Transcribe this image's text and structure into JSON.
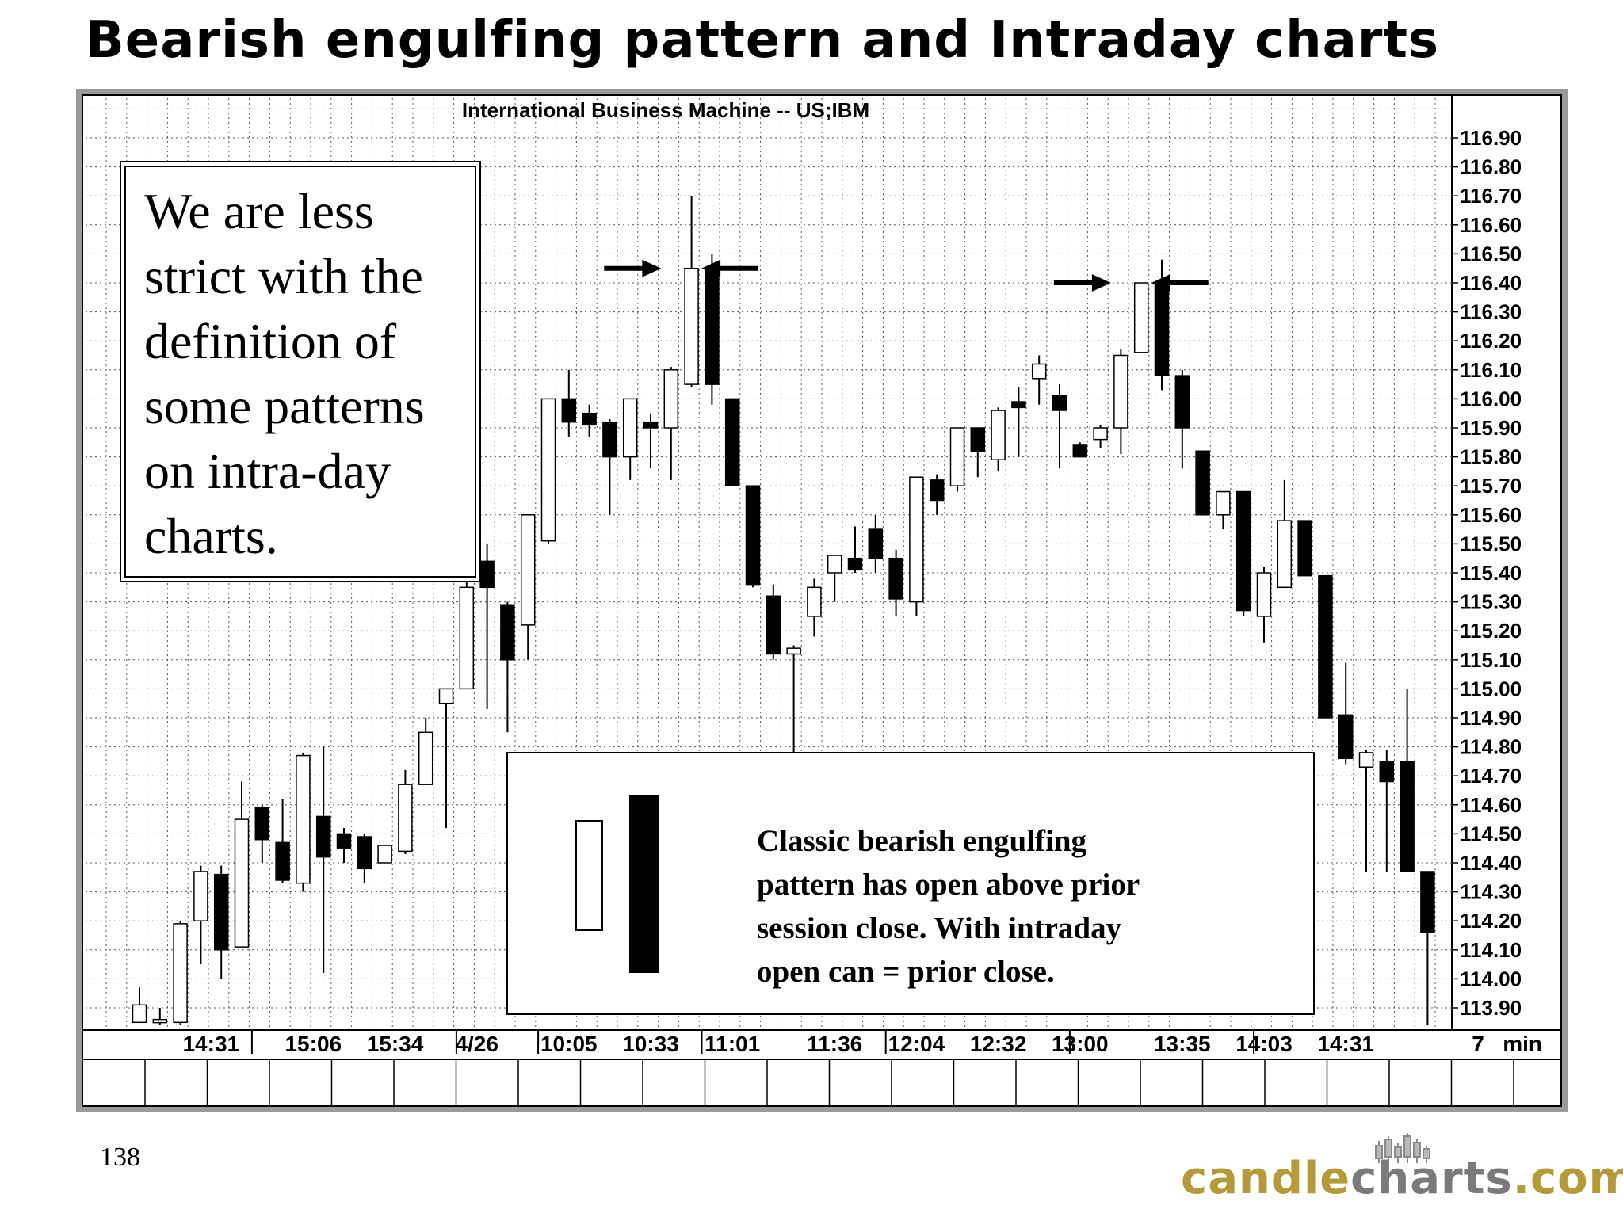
{
  "slide": {
    "title": "Bearish engulfing pattern and Intraday charts",
    "page_number": "138",
    "logo": {
      "part1": "candle",
      "part2": "charts",
      "part3": ".com"
    }
  },
  "callouts": {
    "left_note": [
      "We are less",
      "strict with the",
      "definition of",
      "some patterns",
      "on intra-day",
      "charts."
    ],
    "bottom_note": [
      "Classic bearish engulfing",
      "pattern has open above prior",
      "session close. With intraday",
      "open can = prior close."
    ]
  },
  "colors": {
    "frame": "#9a9a9a",
    "grid": "#555555",
    "candle": "#000000",
    "up_fill": "#ffffff",
    "logo_gold": "#b59a3a",
    "logo_gray": "#7a7a7a"
  },
  "chart_data": {
    "type": "candlestick",
    "title": "International  Business  Machine  --  US;IBM",
    "interval_label": "7   min",
    "ylim": [
      113.84,
      116.98
    ],
    "yticks": [
      "116.90",
      "116.80",
      "116.70",
      "116.60",
      "116.50",
      "116.40",
      "116.30",
      "116.20",
      "116.10",
      "116.00",
      "115.90",
      "115.80",
      "115.70",
      "115.60",
      "115.50",
      "115.40",
      "115.30",
      "115.20",
      "115.10",
      "115.00",
      "114.90",
      "114.80",
      "114.70",
      "114.60",
      "114.50",
      "114.40",
      "114.30",
      "114.20",
      "114.10",
      "114.00",
      "113.90"
    ],
    "xtick_labels": [
      {
        "label": "14:31",
        "at": 3.5
      },
      {
        "label": "15:06",
        "at": 8.5
      },
      {
        "label": "15:34",
        "at": 12.5
      },
      {
        "label": "4/26",
        "at": 16.5
      },
      {
        "label": "10:05",
        "at": 21.0
      },
      {
        "label": "10:33",
        "at": 25.0
      },
      {
        "label": "11:01",
        "at": 29.0
      },
      {
        "label": "11:36",
        "at": 34.0
      },
      {
        "label": "12:04",
        "at": 38.0
      },
      {
        "label": "12:32",
        "at": 42.0
      },
      {
        "label": "13:00",
        "at": 46.0
      },
      {
        "label": "13:35",
        "at": 51.0
      },
      {
        "label": "14:03",
        "at": 55.0
      },
      {
        "label": "14:31",
        "at": 59.0
      }
    ],
    "session_breaks": [
      5.5,
      15.5,
      19.5,
      27.5,
      36.5,
      45.5,
      54.5
    ],
    "candles": [
      {
        "o": 113.85,
        "h": 113.97,
        "l": 113.85,
        "c": 113.91
      },
      {
        "o": 113.85,
        "h": 113.9,
        "l": 113.84,
        "c": 113.86
      },
      {
        "o": 113.85,
        "h": 114.2,
        "l": 113.84,
        "c": 114.19
      },
      {
        "o": 114.2,
        "h": 114.39,
        "l": 114.05,
        "c": 114.37
      },
      {
        "o": 114.36,
        "h": 114.39,
        "l": 114.0,
        "c": 114.1
      },
      {
        "o": 114.11,
        "h": 114.68,
        "l": 114.11,
        "c": 114.55
      },
      {
        "o": 114.59,
        "h": 114.6,
        "l": 114.4,
        "c": 114.48
      },
      {
        "o": 114.47,
        "h": 114.62,
        "l": 114.33,
        "c": 114.34
      },
      {
        "o": 114.33,
        "h": 114.78,
        "l": 114.3,
        "c": 114.77
      },
      {
        "o": 114.56,
        "h": 114.8,
        "l": 114.02,
        "c": 114.42
      },
      {
        "o": 114.5,
        "h": 114.52,
        "l": 114.4,
        "c": 114.45
      },
      {
        "o": 114.49,
        "h": 114.5,
        "l": 114.33,
        "c": 114.38
      },
      {
        "o": 114.4,
        "h": 114.46,
        "l": 114.4,
        "c": 114.46
      },
      {
        "o": 114.44,
        "h": 114.72,
        "l": 114.43,
        "c": 114.67
      },
      {
        "o": 114.67,
        "h": 114.9,
        "l": 114.67,
        "c": 114.85
      },
      {
        "o": 114.95,
        "h": 115.0,
        "l": 114.52,
        "c": 115.0
      },
      {
        "o": 115.0,
        "h": 115.4,
        "l": 115.0,
        "c": 115.35
      },
      {
        "o": 115.44,
        "h": 115.5,
        "l": 114.93,
        "c": 115.35
      },
      {
        "o": 115.29,
        "h": 115.3,
        "l": 114.85,
        "c": 115.1
      },
      {
        "o": 115.22,
        "h": 115.6,
        "l": 115.1,
        "c": 115.6
      },
      {
        "o": 115.51,
        "h": 116.0,
        "l": 115.5,
        "c": 116.0
      },
      {
        "o": 116.0,
        "h": 116.1,
        "l": 115.87,
        "c": 115.92
      },
      {
        "o": 115.95,
        "h": 115.98,
        "l": 115.87,
        "c": 115.91
      },
      {
        "o": 115.92,
        "h": 115.93,
        "l": 115.6,
        "c": 115.8
      },
      {
        "o": 115.8,
        "h": 116.0,
        "l": 115.72,
        "c": 116.0
      },
      {
        "o": 115.92,
        "h": 115.95,
        "l": 115.76,
        "c": 115.9
      },
      {
        "o": 115.9,
        "h": 116.11,
        "l": 115.72,
        "c": 116.1
      },
      {
        "o": 116.05,
        "h": 116.7,
        "l": 116.04,
        "c": 116.45
      },
      {
        "o": 116.45,
        "h": 116.5,
        "l": 115.98,
        "c": 116.05
      },
      {
        "o": 116.0,
        "h": 116.0,
        "l": 115.7,
        "c": 115.7
      },
      {
        "o": 115.7,
        "h": 115.7,
        "l": 115.35,
        "c": 115.36
      },
      {
        "o": 115.32,
        "h": 115.36,
        "l": 115.1,
        "c": 115.12
      },
      {
        "o": 115.12,
        "h": 115.15,
        "l": 114.77,
        "c": 115.14
      },
      {
        "o": 115.25,
        "h": 115.38,
        "l": 115.18,
        "c": 115.35
      },
      {
        "o": 115.4,
        "h": 115.45,
        "l": 115.3,
        "c": 115.46
      },
      {
        "o": 115.45,
        "h": 115.56,
        "l": 115.4,
        "c": 115.41
      },
      {
        "o": 115.55,
        "h": 115.6,
        "l": 115.4,
        "c": 115.45
      },
      {
        "o": 115.45,
        "h": 115.48,
        "l": 115.25,
        "c": 115.31
      },
      {
        "o": 115.3,
        "h": 115.72,
        "l": 115.25,
        "c": 115.73
      },
      {
        "o": 115.72,
        "h": 115.74,
        "l": 115.6,
        "c": 115.65
      },
      {
        "o": 115.7,
        "h": 115.9,
        "l": 115.68,
        "c": 115.9
      },
      {
        "o": 115.9,
        "h": 115.9,
        "l": 115.73,
        "c": 115.82
      },
      {
        "o": 115.79,
        "h": 115.97,
        "l": 115.75,
        "c": 115.96
      },
      {
        "o": 115.99,
        "h": 116.04,
        "l": 115.8,
        "c": 115.97
      },
      {
        "o": 116.07,
        "h": 116.15,
        "l": 115.98,
        "c": 116.12
      },
      {
        "o": 116.01,
        "h": 116.05,
        "l": 115.76,
        "c": 115.96
      },
      {
        "o": 115.84,
        "h": 115.85,
        "l": 115.8,
        "c": 115.8
      },
      {
        "o": 115.86,
        "h": 115.91,
        "l": 115.83,
        "c": 115.9
      },
      {
        "o": 115.9,
        "h": 116.17,
        "l": 115.81,
        "c": 116.15
      },
      {
        "o": 116.16,
        "h": 116.4,
        "l": 116.16,
        "c": 116.4
      },
      {
        "o": 116.4,
        "h": 116.48,
        "l": 116.03,
        "c": 116.08
      },
      {
        "o": 116.08,
        "h": 116.1,
        "l": 115.76,
        "c": 115.9
      },
      {
        "o": 115.82,
        "h": 115.82,
        "l": 115.6,
        "c": 115.6
      },
      {
        "o": 115.6,
        "h": 115.68,
        "l": 115.55,
        "c": 115.68
      },
      {
        "o": 115.68,
        "h": 115.68,
        "l": 115.25,
        "c": 115.27
      },
      {
        "o": 115.25,
        "h": 115.42,
        "l": 115.16,
        "c": 115.4
      },
      {
        "o": 115.35,
        "h": 115.72,
        "l": 115.35,
        "c": 115.58
      },
      {
        "o": 115.58,
        "h": 115.58,
        "l": 115.39,
        "c": 115.39
      },
      {
        "o": 115.39,
        "h": 115.39,
        "l": 114.9,
        "c": 114.9
      },
      {
        "o": 114.91,
        "h": 115.09,
        "l": 114.74,
        "c": 114.76
      },
      {
        "o": 114.73,
        "h": 114.79,
        "l": 114.37,
        "c": 114.78
      },
      {
        "o": 114.75,
        "h": 114.79,
        "l": 114.37,
        "c": 114.68
      },
      {
        "o": 114.75,
        "h": 115.0,
        "l": 114.37,
        "c": 114.37
      },
      {
        "o": 114.37,
        "h": 114.37,
        "l": 113.84,
        "c": 114.16
      }
    ],
    "annotations": [
      {
        "type": "engulf-arrows",
        "left_candle": 26,
        "right_candle": 27,
        "price": 116.45
      },
      {
        "type": "engulf-arrows",
        "left_candle": 48,
        "right_candle": 49,
        "price": 116.4
      }
    ]
  }
}
